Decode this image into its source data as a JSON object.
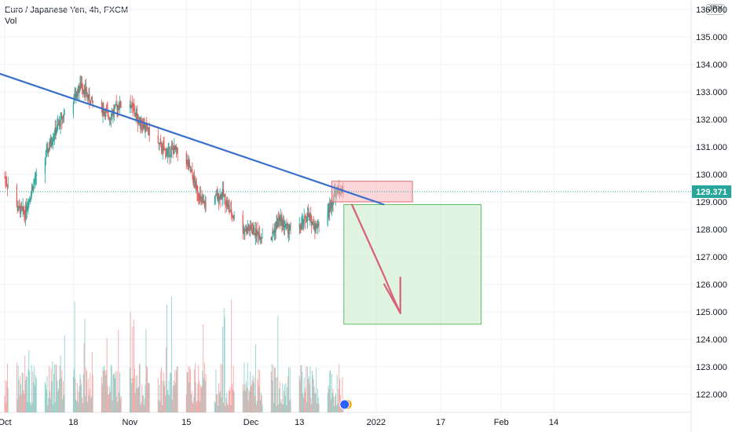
{
  "legend": {
    "title": "Euro / Japanese Yen, 4h, FXCM",
    "volume_label": "Vol"
  },
  "currency_badge": "JPY",
  "last_price_label": "129.371",
  "colors": {
    "up": "#26a69a",
    "down": "#ef5350",
    "grid": "#f0f3fa",
    "trendline": "#3a6fcc",
    "last_price": "#26a69a",
    "stop_zone": "#f7b6bb",
    "target_zone": "#c8ebc8",
    "arrow": "#d9607a"
  },
  "chart_data": {
    "type": "candlestick",
    "title": "Euro / Japanese Yen, 4h, FXCM",
    "x_tick_labels": [
      "Oct",
      "18",
      "Nov",
      "15",
      "Dec",
      "13",
      "2022",
      "17",
      "Feb",
      "14"
    ],
    "y_tick_labels": [
      "122.000",
      "123.000",
      "124.000",
      "125.000",
      "126.000",
      "127.000",
      "128.000",
      "129.000",
      "130.000",
      "131.000",
      "132.000",
      "133.000",
      "134.000",
      "135.000",
      "136.000"
    ],
    "ylim": [
      121.5,
      136.2
    ],
    "last_price": 129.371,
    "price_path": [
      {
        "date": "2021-10-01",
        "price": 129.9
      },
      {
        "date": "2021-10-04",
        "price": 128.8
      },
      {
        "date": "2021-10-06",
        "price": 128.6
      },
      {
        "date": "2021-10-08",
        "price": 129.6
      },
      {
        "date": "2021-10-11",
        "price": 130.6
      },
      {
        "date": "2021-10-13",
        "price": 131.4
      },
      {
        "date": "2021-10-15",
        "price": 132.0
      },
      {
        "date": "2021-10-18",
        "price": 132.7
      },
      {
        "date": "2021-10-20",
        "price": 133.3
      },
      {
        "date": "2021-10-22",
        "price": 132.7
      },
      {
        "date": "2021-10-25",
        "price": 132.4
      },
      {
        "date": "2021-10-27",
        "price": 132.1
      },
      {
        "date": "2021-10-29",
        "price": 132.5
      },
      {
        "date": "2021-11-01",
        "price": 132.6
      },
      {
        "date": "2021-11-03",
        "price": 132.0
      },
      {
        "date": "2021-11-05",
        "price": 131.7
      },
      {
        "date": "2021-11-08",
        "price": 131.1
      },
      {
        "date": "2021-11-10",
        "price": 130.8
      },
      {
        "date": "2021-11-12",
        "price": 130.9
      },
      {
        "date": "2021-11-15",
        "price": 130.5
      },
      {
        "date": "2021-11-17",
        "price": 129.7
      },
      {
        "date": "2021-11-19",
        "price": 128.9
      },
      {
        "date": "2021-11-22",
        "price": 129.1
      },
      {
        "date": "2021-11-24",
        "price": 129.3
      },
      {
        "date": "2021-11-26",
        "price": 128.6
      },
      {
        "date": "2021-11-29",
        "price": 128.0
      },
      {
        "date": "2021-12-01",
        "price": 128.0
      },
      {
        "date": "2021-12-03",
        "price": 127.8
      },
      {
        "date": "2021-12-06",
        "price": 127.7
      },
      {
        "date": "2021-12-08",
        "price": 128.4
      },
      {
        "date": "2021-12-10",
        "price": 128.0
      },
      {
        "date": "2021-12-13",
        "price": 128.0
      },
      {
        "date": "2021-12-15",
        "price": 128.5
      },
      {
        "date": "2021-12-17",
        "price": 128.1
      },
      {
        "date": "2021-12-20",
        "price": 128.6
      },
      {
        "date": "2021-12-22",
        "price": 129.4
      },
      {
        "date": "2021-12-24",
        "price": 129.4
      }
    ],
    "volume_range": [
      5,
      40
    ],
    "trendline": {
      "start": {
        "date": "2021-09-11",
        "price": 134.6
      },
      "end": {
        "date": "2022-01-03",
        "price": 128.9
      }
    },
    "stop_zone": {
      "start": "2021-12-21",
      "end": "2022-01-10",
      "price_low": 129.0,
      "price_high": 129.75
    },
    "target_zone": {
      "start": "2021-12-24",
      "end": "2022-01-27",
      "price_low": 124.55,
      "price_high": 128.9
    },
    "arrow_path": [
      {
        "date": "2021-12-26",
        "price": 128.9
      },
      {
        "date": "2021-12-30",
        "price": 127.6
      },
      {
        "date": "2022-01-03",
        "price": 126.3
      },
      {
        "date": "2022-01-05",
        "price": 125.6
      },
      {
        "date": "2022-01-07",
        "price": 124.95
      }
    ],
    "arrow_head": [
      {
        "date": "2022-01-03",
        "price": 126.0
      },
      {
        "date": "2022-01-07",
        "price": 124.95
      },
      {
        "date": "2022-01-07",
        "price": 126.25
      }
    ],
    "grid": true
  }
}
